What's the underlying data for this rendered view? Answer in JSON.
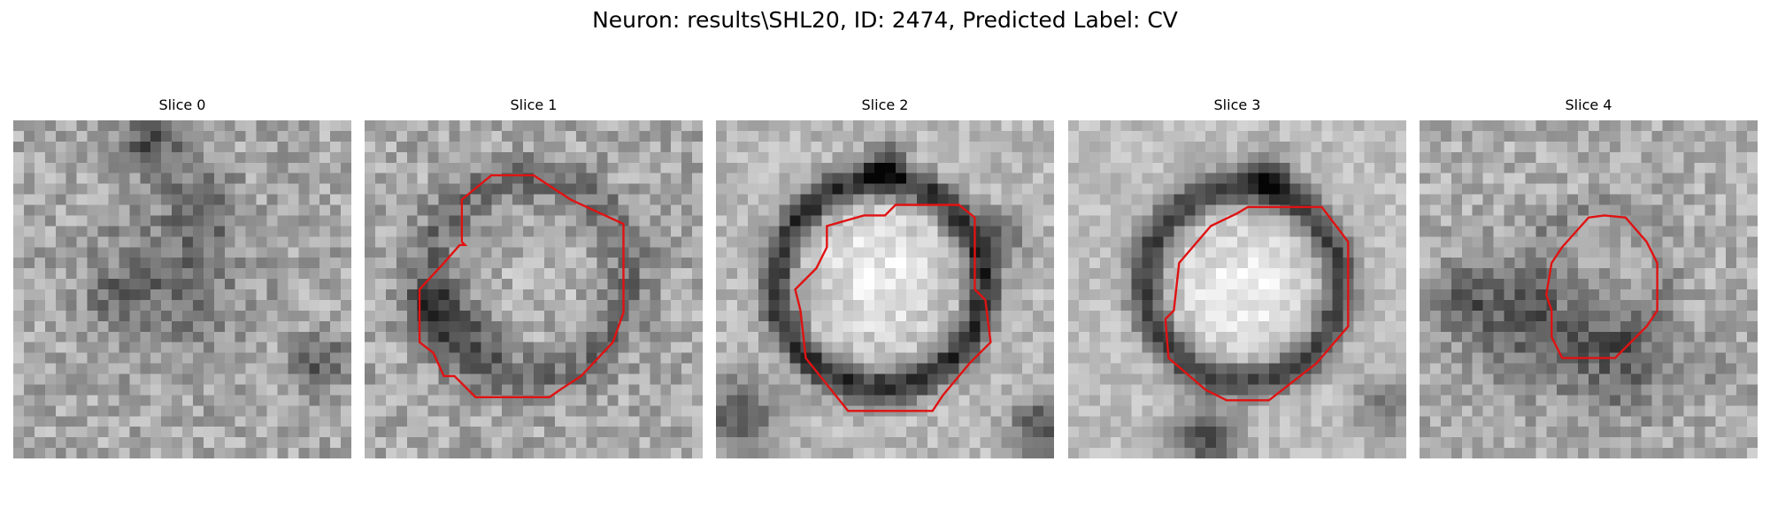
{
  "figure": {
    "title": "Neuron: results\\SHL20, ID: 2474, Predicted Label: CV",
    "contour_color": "#e01212"
  },
  "slices": [
    {
      "title": "Slice 0",
      "has_contour": false
    },
    {
      "title": "Slice 1",
      "has_contour": true
    },
    {
      "title": "Slice 2",
      "has_contour": true
    },
    {
      "title": "Slice 3",
      "has_contour": true
    },
    {
      "title": "Slice 4",
      "has_contour": true
    }
  ]
}
